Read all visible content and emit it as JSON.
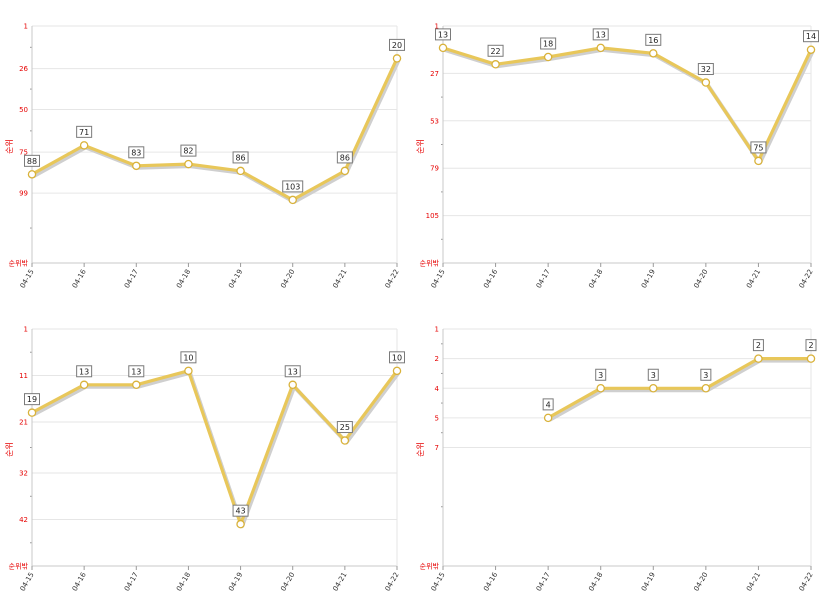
{
  "chart_data": [
    {
      "type": "line",
      "ylabel": "순위",
      "bottom_label": "순위밖",
      "y_reversed": true,
      "ylim": [
        1,
        140
      ],
      "yticks": [
        1,
        26,
        50,
        75,
        99
      ],
      "categories": [
        "04-15",
        "04-16",
        "04-17",
        "04-18",
        "04-19",
        "04-20",
        "04-21",
        "04-22"
      ],
      "values": [
        88,
        71,
        83,
        82,
        86,
        103,
        86,
        20
      ],
      "color": "#e8c75a"
    },
    {
      "type": "line",
      "ylabel": "순위",
      "bottom_label": "순위밖",
      "y_reversed": true,
      "ylim": [
        1,
        131
      ],
      "yticks": [
        1,
        27,
        53,
        79,
        105
      ],
      "categories": [
        "04-15",
        "04-16",
        "04-17",
        "04-18",
        "04-19",
        "04-20",
        "04-21",
        "04-22"
      ],
      "values": [
        13,
        22,
        18,
        13,
        16,
        32,
        75,
        14
      ],
      "color": "#e8c75a"
    },
    {
      "type": "line",
      "ylabel": "순위",
      "bottom_label": "순위밖",
      "y_reversed": true,
      "ylim": [
        1,
        52
      ],
      "yticks": [
        1,
        11,
        21,
        32,
        42
      ],
      "categories": [
        "04-15",
        "04-16",
        "04-17",
        "04-18",
        "04-19",
        "04-20",
        "04-21",
        "04-22"
      ],
      "values": [
        19,
        13,
        13,
        10,
        43,
        13,
        25,
        10
      ],
      "color": "#e8c75a"
    },
    {
      "type": "line",
      "ylabel": "순위",
      "bottom_label": "순위밖",
      "y_reversed": true,
      "ylim": [
        1,
        9
      ],
      "yticks": [
        1,
        2,
        4,
        5,
        7
      ],
      "ytick_values": [
        1,
        2,
        3,
        4,
        5
      ],
      "categories": [
        "04-15",
        "04-16",
        "04-17",
        "04-18",
        "04-19",
        "04-20",
        "04-21",
        "04-22"
      ],
      "values": [
        null,
        null,
        4,
        3,
        3,
        3,
        2,
        2
      ],
      "color": "#e8c75a"
    }
  ]
}
